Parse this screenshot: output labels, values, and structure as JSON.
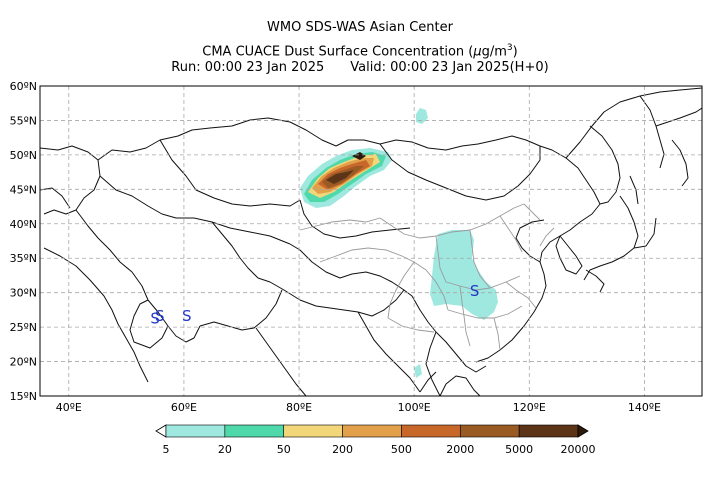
{
  "header": {
    "line1": "WMO SDS-WAS Asian Center",
    "line2_prefix": "CMA CUACE Dust Surface Concentration (",
    "line2_unit_mu": "μ",
    "line2_unit_rest": "g/m",
    "line2_unit_sup": "3",
    "line2_suffix": ")",
    "run": "Run: 00:00 23 Jan 2025",
    "valid": "Valid: 00:00 23 Jan 2025(H+0)"
  },
  "map": {
    "lon_range": [
      35,
      150
    ],
    "lat_range": [
      15,
      60
    ],
    "lat_ticks": [
      "15ºN",
      "20ºN",
      "25ºN",
      "30ºN",
      "35ºN",
      "40ºN",
      "45ºN",
      "50ºN",
      "55ºN",
      "60ºN"
    ],
    "lon_ticks": [
      "40ºE",
      "60ºE",
      "80ºE",
      "100ºE",
      "120ºE",
      "140ºE"
    ],
    "colors": {
      "land_border": "#111111",
      "province_border": "#9a9a9a",
      "grid": "#a8a8a8"
    },
    "dust_symbols": [
      {
        "label": "S",
        "lon": 55.0,
        "lat": 25.5
      },
      {
        "label": "S",
        "lon": 55.8,
        "lat": 25.9
      },
      {
        "label": "S",
        "lon": 60.5,
        "lat": 25.9
      },
      {
        "label": "S",
        "lon": 110.5,
        "lat": 29.5
      }
    ]
  },
  "colorbar": {
    "unit_note": "",
    "levels": [
      "5",
      "20",
      "50",
      "200",
      "500",
      "2000",
      "5000",
      "20000"
    ],
    "colors": [
      "#9ee8e0",
      "#4fd9aa",
      "#f2d67a",
      "#e3a04a",
      "#c8672a",
      "#9a5a24",
      "#5c3418",
      "#2b1a0c"
    ]
  }
}
